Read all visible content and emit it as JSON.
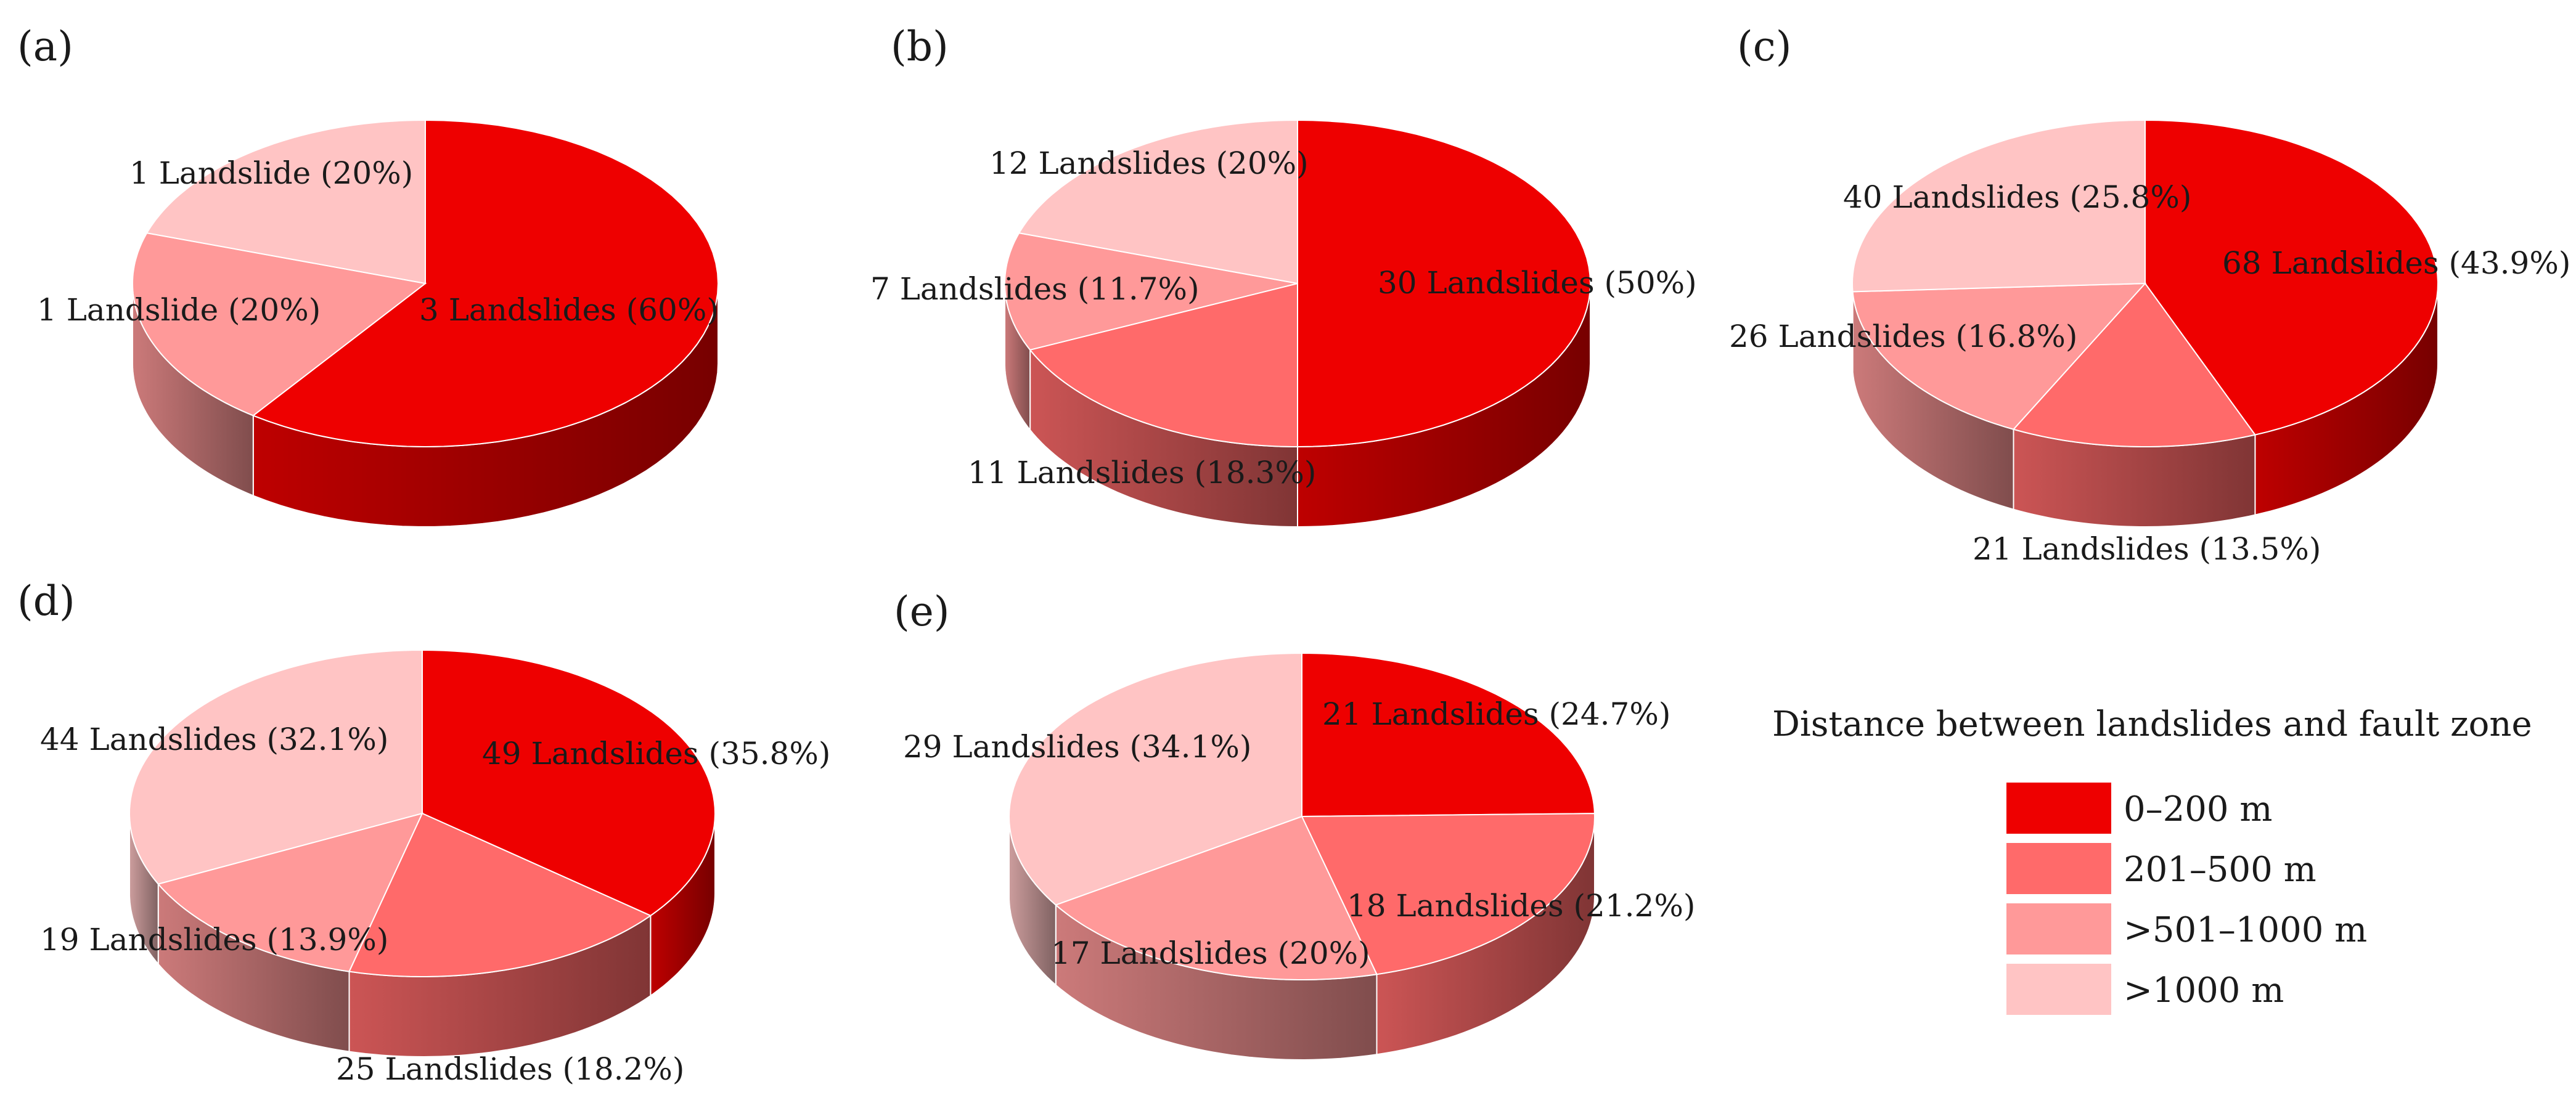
{
  "figure": {
    "legend": {
      "title": "Distance between landslides and fault zone",
      "items": [
        {
          "label": "0–200 m",
          "color": "#ee0000"
        },
        {
          "label": "201–500 m",
          "color": "#ff6a6a"
        },
        {
          "label": ">501–1000 m",
          "color": "#ff9999"
        },
        {
          "label": ">1000 m",
          "color": "#ffc4c4"
        }
      ]
    }
  },
  "chart_data": [
    {
      "type": "pie",
      "panel": "(a)",
      "categories": [
        "0–200 m",
        "201–500 m",
        "501–1000 m",
        ">1000 m"
      ],
      "values": [
        3,
        0,
        1,
        1
      ],
      "percent": [
        60,
        0,
        20,
        20
      ],
      "labels": [
        "3 Landslides (60%)",
        "",
        "1 Landslide (20%)",
        "1 Landslide (20%)"
      ]
    },
    {
      "type": "pie",
      "panel": "(b)",
      "categories": [
        "0–200 m",
        "201–500 m",
        "501–1000 m",
        ">1000 m"
      ],
      "values": [
        30,
        11,
        7,
        12
      ],
      "percent": [
        50,
        18.3,
        11.7,
        20
      ],
      "labels": [
        "30 Landslides (50%)",
        "11 Landslides (18.3%)",
        "7 Landslides (11.7%)",
        "12 Landslides (20%)"
      ]
    },
    {
      "type": "pie",
      "panel": "(c)",
      "categories": [
        "0–200 m",
        "201–500 m",
        "501–1000 m",
        ">1000 m"
      ],
      "values": [
        68,
        21,
        26,
        40
      ],
      "percent": [
        43.9,
        13.5,
        16.8,
        25.8
      ],
      "labels": [
        "68 Landslides (43.9%)",
        "21 Landslides (13.5%)",
        "26 Landslides (16.8%)",
        "40 Landslides (25.8%)"
      ]
    },
    {
      "type": "pie",
      "panel": "(d)",
      "categories": [
        "0–200 m",
        "201–500 m",
        "501–1000 m",
        ">1000 m"
      ],
      "values": [
        49,
        25,
        19,
        44
      ],
      "percent": [
        35.8,
        18.2,
        13.9,
        32.1
      ],
      "labels": [
        "49 Landslides (35.8%)",
        "25 Landslides (18.2%)",
        "19 Landslides (13.9%)",
        "44 Landslides (32.1%)"
      ]
    },
    {
      "type": "pie",
      "panel": "(e)",
      "categories": [
        "0–200 m",
        "201–500 m",
        "501–1000 m",
        ">1000 m"
      ],
      "values": [
        21,
        18,
        17,
        29
      ],
      "percent": [
        24.7,
        21.2,
        20,
        34.1
      ],
      "labels": [
        "21 Landslides (24.7%)",
        "18 Landslides (21.2%)",
        "17 Landslides (20%)",
        "29 Landslides (34.1%)"
      ]
    }
  ]
}
